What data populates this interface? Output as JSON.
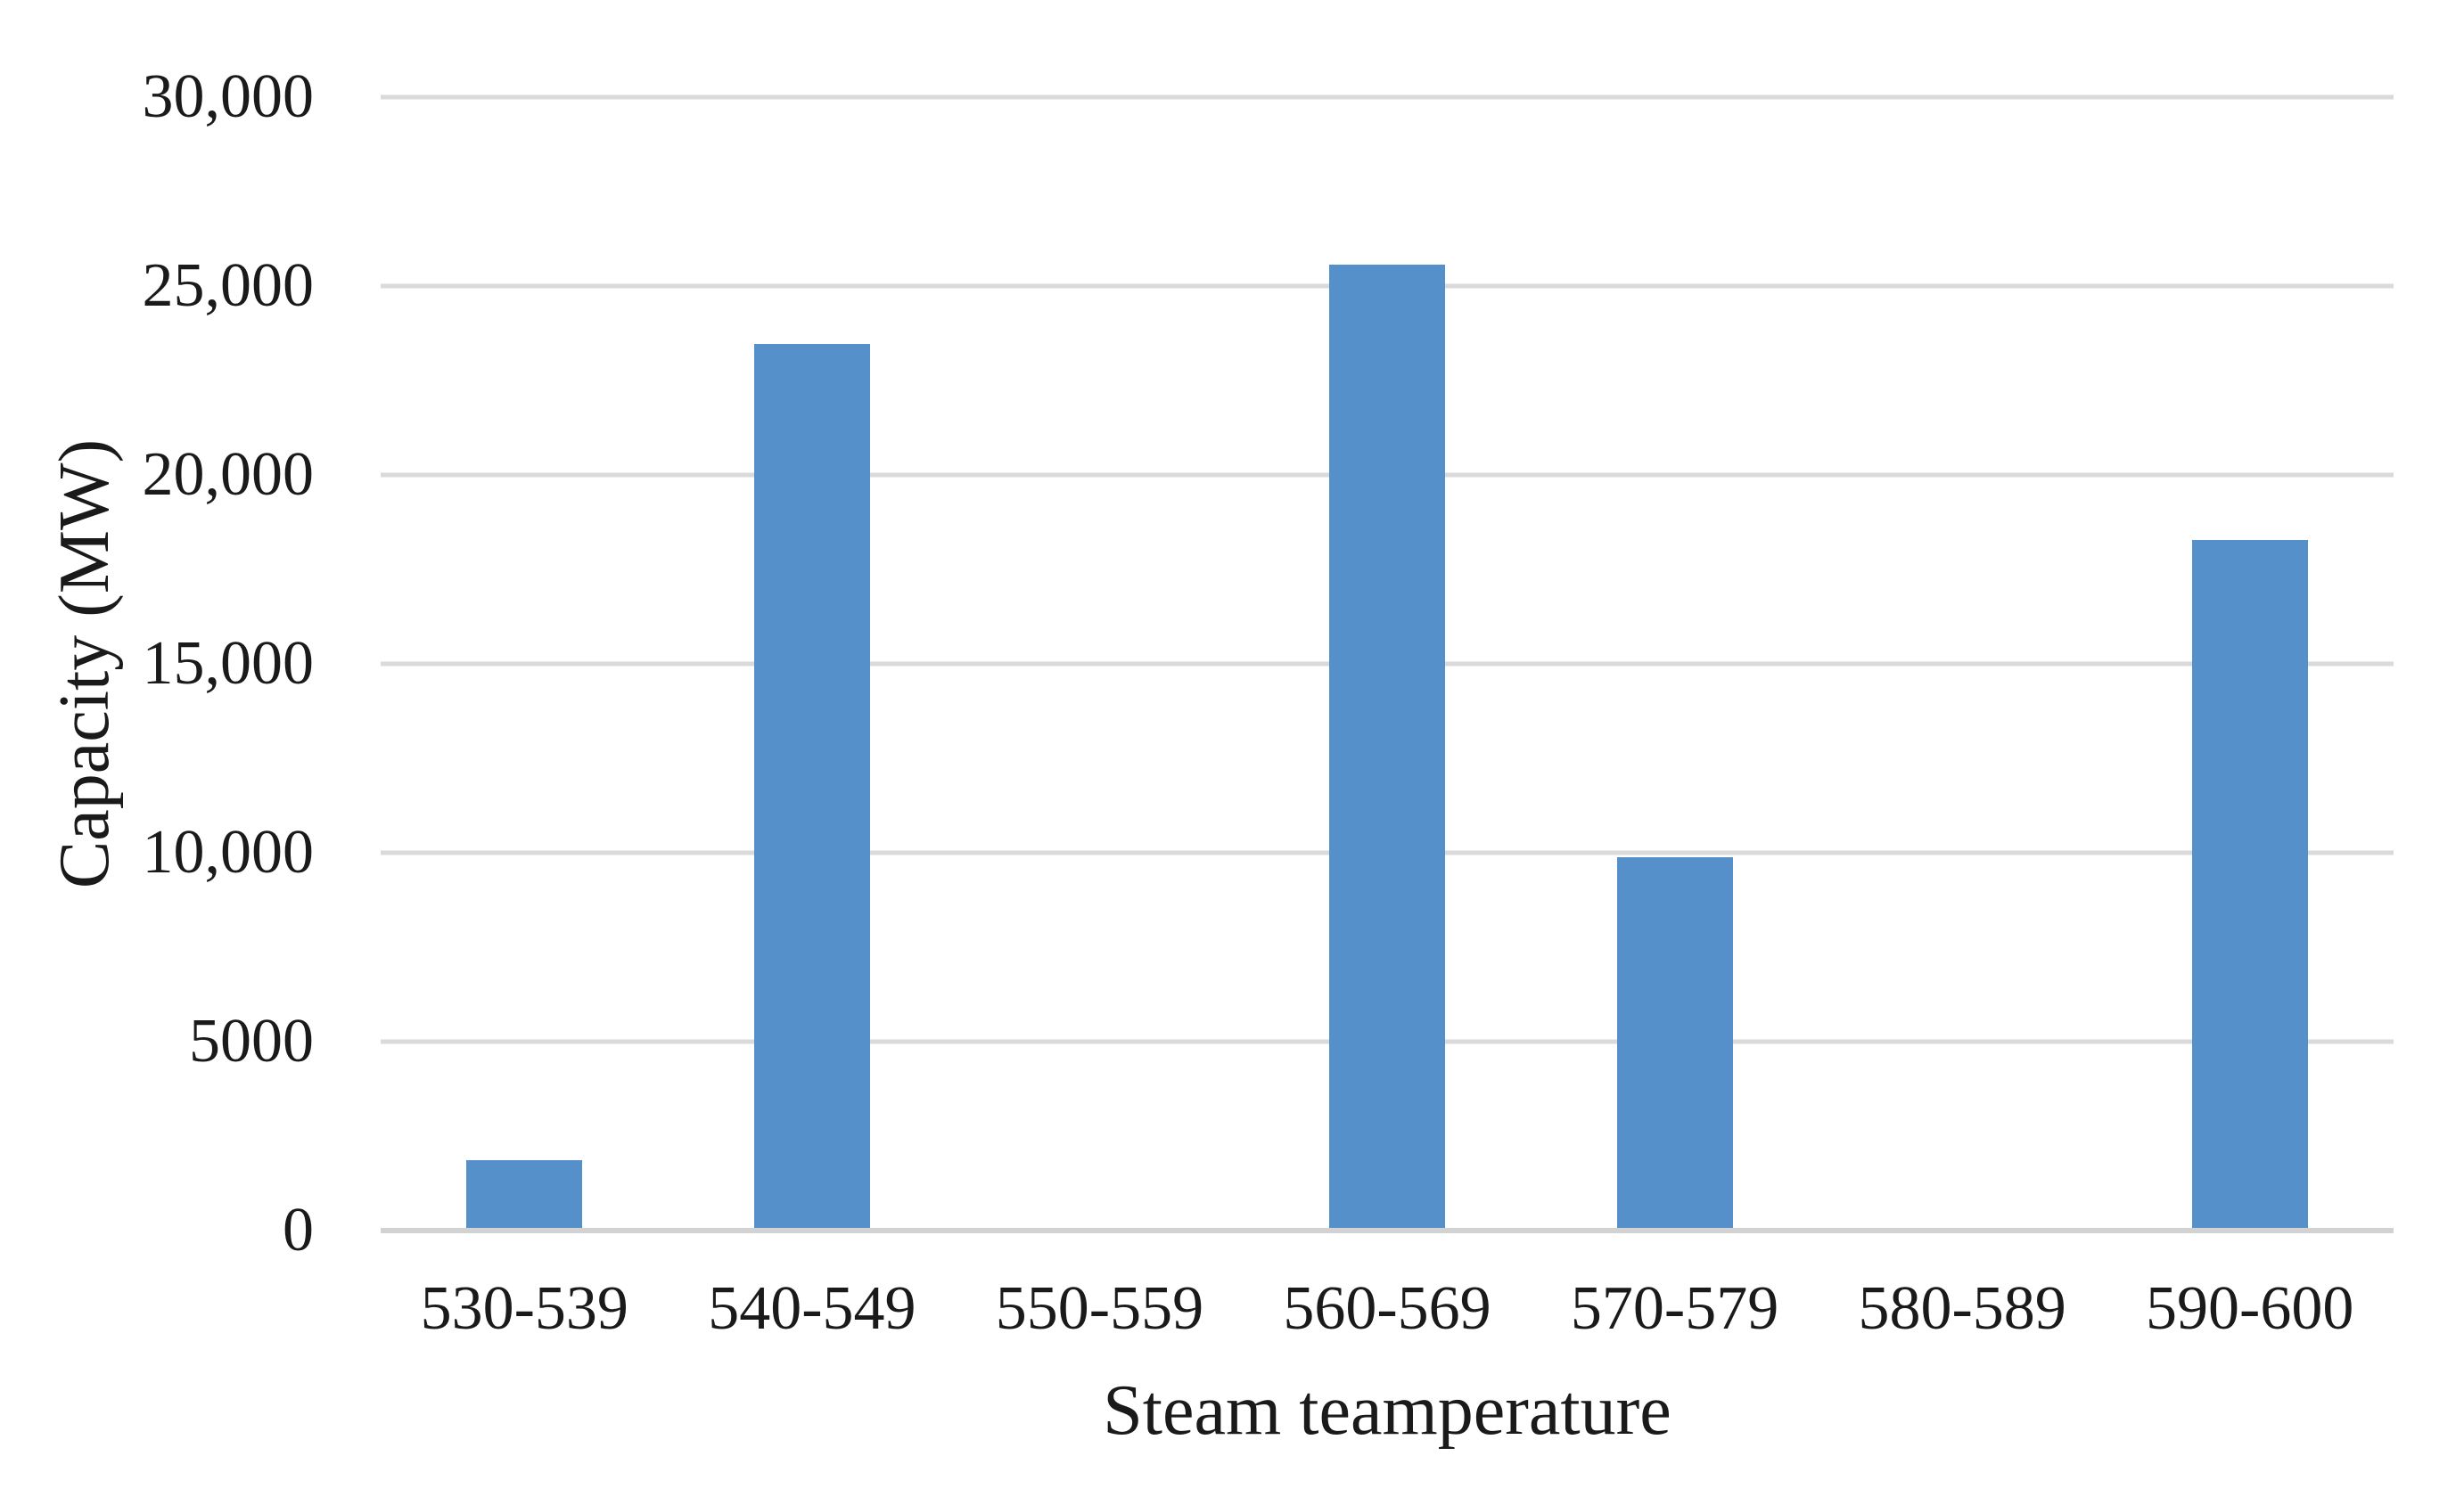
{
  "chart_data": {
    "type": "bar",
    "title": "",
    "xlabel": "Steam teamperature",
    "ylabel": "Capacity (MW)",
    "categories": [
      "530-539",
      "540-549",
      "550-559",
      "560-569",
      "570-579",
      "580-589",
      "590-600"
    ],
    "values": [
      1800,
      23400,
      0,
      25500,
      9800,
      0,
      18200
    ],
    "series_name": "Capacity (MW)",
    "ylim": [
      0,
      30000
    ],
    "ytick_interval": 5000,
    "ytick_labels": [
      "0",
      "5000",
      "10,000",
      "15,000",
      "20,000",
      "25,000",
      "30,000"
    ],
    "grid": true,
    "legend": false,
    "bar_color": "#5590ca",
    "gridline_color": "#dadada"
  }
}
